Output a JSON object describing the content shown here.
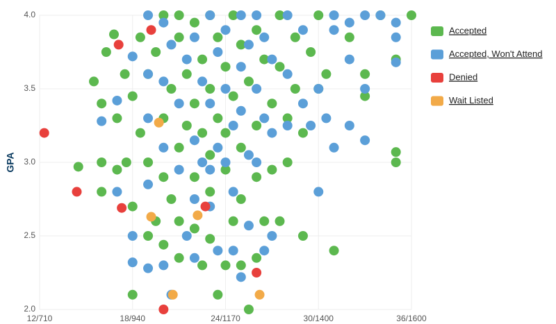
{
  "chart_data": {
    "type": "scatter",
    "y_label": "GPA",
    "xlim": [
      12,
      36
    ],
    "ylim": [
      2,
      4
    ],
    "xticks": [
      {
        "value": 12,
        "label": "12/710"
      },
      {
        "value": 18,
        "label": "18/940"
      },
      {
        "value": 24,
        "label": "24/1170"
      },
      {
        "value": 30,
        "label": "30/1400"
      },
      {
        "value": 36,
        "label": "36/1600"
      }
    ],
    "yticks": [
      {
        "value": 2,
        "label": "2.0"
      },
      2.5,
      {
        "value": 3,
        "label": "3.0"
      },
      3.5,
      {
        "value": 4,
        "label": "4.0"
      }
    ],
    "grid": true,
    "legend": "right",
    "series": [
      {
        "name": "Accepted",
        "color": "#5cb84f",
        "x": [
          14.5,
          15.5,
          16,
          16,
          16,
          16.3,
          16.8,
          17,
          17,
          17.5,
          17.6,
          18,
          18,
          18,
          18.5,
          18.5,
          19,
          19,
          19,
          19.5,
          19.5,
          20,
          20,
          20,
          20,
          20.5,
          20.5,
          21,
          21,
          21,
          21,
          21,
          21.5,
          21.5,
          22,
          22,
          22,
          22,
          22.5,
          22.5,
          22.5,
          23,
          23,
          23,
          23,
          23,
          23.5,
          23.5,
          23.5,
          24,
          24,
          24,
          24,
          24.5,
          24.5,
          24.5,
          25,
          25,
          25,
          25,
          25.5,
          25.5,
          26,
          26,
          26,
          26,
          26.5,
          26.5,
          27,
          27,
          27.5,
          27.5,
          27.5,
          28,
          28,
          28.5,
          28.5,
          29,
          29,
          29.5,
          30,
          30,
          30.5,
          31,
          32,
          33,
          33,
          34,
          35,
          35,
          35,
          36
        ],
        "values": [
          2.97,
          3.55,
          3.4,
          3.0,
          2.8,
          3.75,
          3.87,
          3.3,
          2.95,
          3.6,
          3.0,
          3.45,
          2.7,
          2.1,
          3.85,
          3.2,
          3.6,
          3.0,
          2.5,
          2.6,
          3.75,
          4.0,
          3.3,
          2.9,
          2.44,
          3.5,
          2.75,
          4.0,
          3.85,
          3.1,
          2.6,
          2.35,
          3.6,
          3.25,
          3.95,
          3.4,
          2.9,
          2.55,
          3.7,
          3.2,
          2.3,
          4.0,
          3.5,
          3.05,
          2.8,
          2.48,
          3.85,
          3.3,
          2.1,
          3.65,
          3.2,
          2.95,
          2.3,
          4.0,
          3.45,
          2.6,
          3.8,
          3.1,
          2.75,
          2.3,
          3.55,
          2.0,
          3.9,
          3.25,
          2.9,
          2.35,
          3.7,
          2.6,
          3.4,
          2.95,
          4.0,
          3.65,
          2.6,
          3.3,
          3.0,
          3.85,
          3.5,
          3.2,
          2.5,
          3.75,
          4.0,
          3.5,
          3.6,
          2.4,
          3.85,
          3.45,
          3.6,
          4.0,
          3.7,
          3.07,
          3.0,
          4.0
        ]
      },
      {
        "name": "Accepted, Won't Attend",
        "color": "#5b9fd8",
        "x": [
          16,
          17,
          17,
          18,
          18,
          18,
          19,
          19,
          19,
          19,
          19,
          20,
          20,
          20,
          20,
          20.5,
          20.5,
          21,
          21,
          21.5,
          21.5,
          22,
          22,
          22,
          22,
          22.5,
          22.5,
          23,
          23,
          23,
          23,
          23.5,
          23.5,
          23.5,
          24,
          24,
          24,
          24.5,
          24.5,
          24.5,
          25,
          25,
          25,
          25,
          25.5,
          25.5,
          25.5,
          26,
          26,
          26,
          26.5,
          26.5,
          26.5,
          27,
          27,
          27,
          28,
          28,
          28,
          29,
          29,
          29.5,
          30,
          30,
          30.5,
          31,
          31,
          31,
          32,
          32,
          32,
          33,
          33,
          33,
          34,
          35,
          35,
          35
        ],
        "values": [
          3.28,
          3.42,
          2.8,
          3.72,
          2.5,
          2.32,
          4.0,
          3.6,
          3.3,
          2.85,
          2.28,
          3.95,
          3.55,
          3.1,
          2.3,
          3.8,
          2.1,
          3.4,
          2.95,
          3.7,
          2.5,
          3.85,
          3.15,
          2.75,
          2.35,
          3.55,
          3.0,
          4.0,
          3.4,
          2.95,
          2.7,
          3.75,
          3.1,
          2.4,
          3.9,
          3.5,
          3.0,
          3.25,
          2.8,
          2.4,
          4.0,
          3.65,
          3.35,
          2.22,
          3.8,
          3.05,
          2.57,
          4.0,
          3.5,
          3.0,
          3.85,
          3.3,
          2.4,
          3.7,
          3.2,
          2.5,
          4.0,
          3.6,
          3.25,
          3.9,
          3.4,
          3.25,
          3.5,
          2.8,
          3.3,
          4.0,
          3.9,
          3.1,
          3.95,
          3.7,
          3.25,
          4.0,
          3.5,
          3.15,
          4.0,
          3.95,
          3.85,
          3.68
        ]
      },
      {
        "name": "Denied",
        "color": "#e8403c",
        "x": [
          12.3,
          14.4,
          17.3,
          19.2,
          17.1,
          20.0,
          22.7,
          26.0
        ],
        "values": [
          3.2,
          2.8,
          2.69,
          3.9,
          3.8,
          2.0,
          2.7,
          2.25
        ]
      },
      {
        "name": "Wait Listed",
        "color": "#f2aa48",
        "x": [
          19.2,
          20.6,
          26.2,
          22.2,
          19.7
        ],
        "values": [
          2.63,
          2.1,
          2.1,
          2.64,
          3.27
        ]
      }
    ]
  }
}
